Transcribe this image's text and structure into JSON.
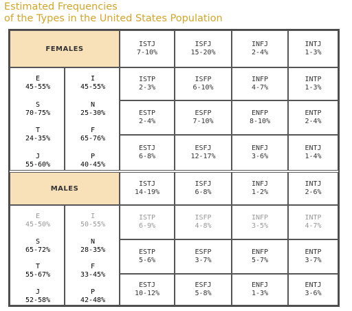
{
  "title": {
    "line1": "Estimated Frequencies",
    "line2": "of the Types in the United States Population"
  },
  "females": {
    "label": "FEMALES",
    "prefs": [
      {
        "a": "E",
        "av": "45-55%",
        "b": "I",
        "bv": "45-55%"
      },
      {
        "a": "S",
        "av": "70-75%",
        "b": "N",
        "bv": "25-30%"
      },
      {
        "a": "T",
        "av": "24-35%",
        "b": "F",
        "bv": "65-76%"
      },
      {
        "a": "J",
        "av": "55-60%",
        "b": "P",
        "bv": "40-45%"
      }
    ],
    "rows": [
      [
        {
          "t": "ISTJ",
          "v": "7-10%"
        },
        {
          "t": "ISFJ",
          "v": "15-20%"
        },
        {
          "t": "INFJ",
          "v": "2-4%"
        },
        {
          "t": "INTJ",
          "v": "1-3%"
        }
      ],
      [
        {
          "t": "ISTP",
          "v": "2-3%"
        },
        {
          "t": "ISFP",
          "v": "6-10%"
        },
        {
          "t": "INFP",
          "v": "4-7%"
        },
        {
          "t": "INTP",
          "v": "1-3%"
        }
      ],
      [
        {
          "t": "ESTP",
          "v": "2-4%"
        },
        {
          "t": "ESFP",
          "v": "7-10%"
        },
        {
          "t": "ENFP",
          "v": "8-10%"
        },
        {
          "t": "ENTP",
          "v": "2-4%"
        }
      ],
      [
        {
          "t": "ESTJ",
          "v": "6-8%"
        },
        {
          "t": "ESFJ",
          "v": "12-17%"
        },
        {
          "t": "ENFJ",
          "v": "3-6%"
        },
        {
          "t": "ENTJ",
          "v": "1-4%"
        }
      ]
    ]
  },
  "males": {
    "label": "MALES",
    "prefs": [
      {
        "a": "E",
        "av": "45-50%",
        "b": "I",
        "bv": "50-55%"
      },
      {
        "a": "S",
        "av": "65-72%",
        "b": "N",
        "bv": "28-35%"
      },
      {
        "a": "T",
        "av": "55-67%",
        "b": "F",
        "bv": "33-45%"
      },
      {
        "a": "J",
        "av": "52-58%",
        "b": "P",
        "bv": "42-48%"
      }
    ],
    "rows": [
      [
        {
          "t": "ISTJ",
          "v": "14-19%"
        },
        {
          "t": "ISFJ",
          "v": "6-8%"
        },
        {
          "t": "INFJ",
          "v": "1-2%"
        },
        {
          "t": "INTJ",
          "v": "2-6%"
        }
      ],
      [
        {
          "t": "ISTP",
          "v": "6-9%"
        },
        {
          "t": "ISFP",
          "v": "4-8%"
        },
        {
          "t": "INFP",
          "v": "3-5%"
        },
        {
          "t": "INTP",
          "v": "4-7%"
        }
      ],
      [
        {
          "t": "ESTP",
          "v": "5-6%"
        },
        {
          "t": "ESFP",
          "v": "3-7%"
        },
        {
          "t": "ENFP",
          "v": "5-7%"
        },
        {
          "t": "ENTP",
          "v": "3-7%"
        }
      ],
      [
        {
          "t": "ESTJ",
          "v": "10-12%"
        },
        {
          "t": "ESFJ",
          "v": "5-8%"
        },
        {
          "t": "ENFJ",
          "v": "1-3%"
        },
        {
          "t": "ENTJ",
          "v": "3-6%"
        }
      ]
    ]
  },
  "colors": {
    "title": "#d4a52a",
    "header_bg": "#f8e0b8",
    "border": "#555555"
  }
}
